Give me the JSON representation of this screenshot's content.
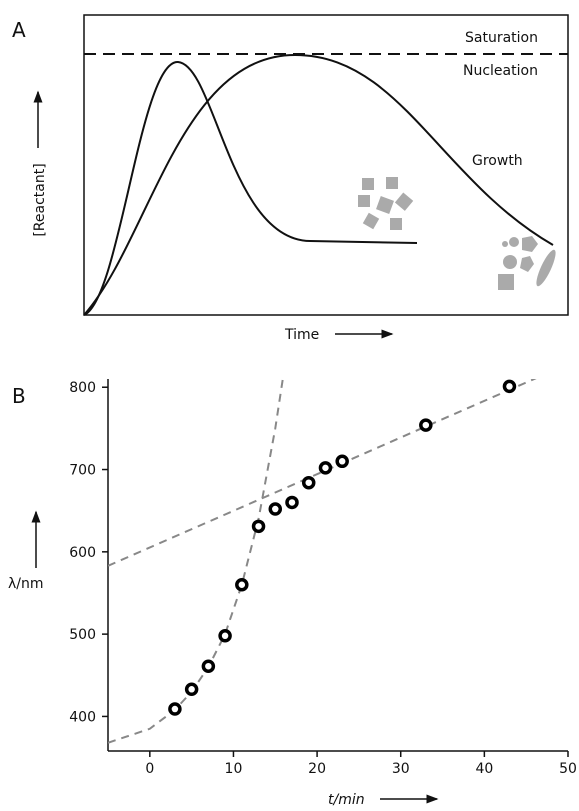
{
  "panel_a": {
    "label": "A",
    "saturation": "Saturation",
    "nucleation": "Nucleation",
    "growth": "Growth",
    "y_label": "[Reactant]",
    "x_label": "Time"
  },
  "chart_data": {
    "type": "scatter",
    "panel_label": "B",
    "x_label": "t/min",
    "y_label": "λ/nm",
    "x": [
      3,
      5,
      7,
      9,
      11,
      13,
      15,
      17,
      19,
      21,
      23,
      33,
      43
    ],
    "values": [
      409,
      433,
      461,
      498,
      560,
      631,
      652,
      660,
      684,
      702,
      710,
      754,
      801
    ],
    "color": "#000000",
    "xlim": [
      -5,
      50
    ],
    "ylim": [
      358,
      810
    ],
    "xticks": [
      0,
      10,
      20,
      30,
      40,
      50
    ],
    "yticks": [
      400,
      500,
      600,
      700,
      800
    ],
    "fits": [
      {
        "x": [
          -5,
          50
        ],
        "y": [
          583,
          828
        ]
      },
      {
        "x": [
          -5,
          0,
          3,
          5,
          7,
          9,
          11,
          13,
          15,
          16.5
        ],
        "y": [
          368,
          385,
          408,
          430,
          460,
          500,
          560,
          640,
          750,
          850
        ]
      }
    ],
    "fit_color": "#888888"
  }
}
